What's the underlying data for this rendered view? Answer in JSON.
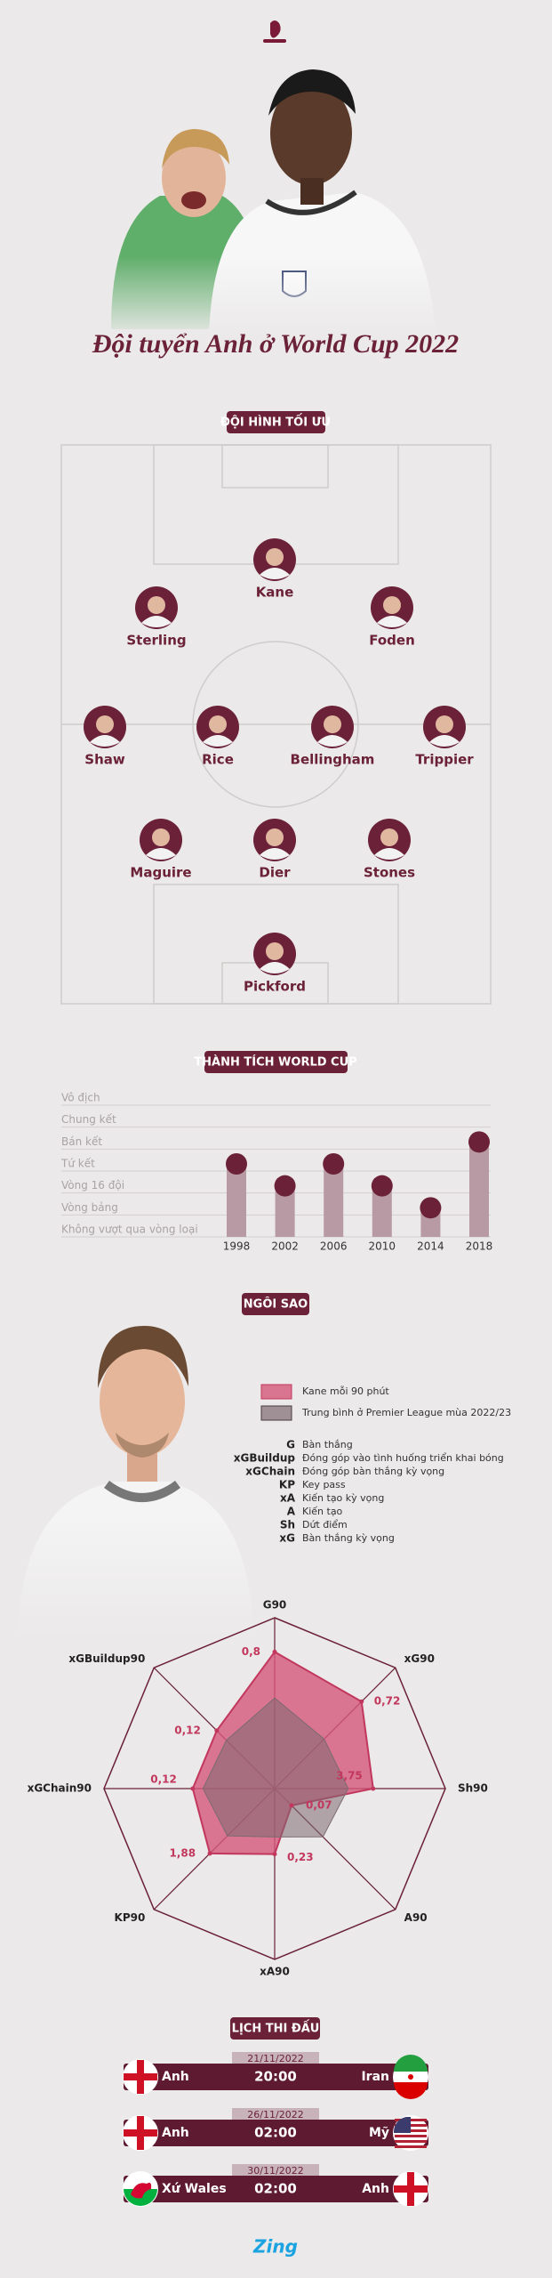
{
  "header": {
    "title": "Đội tuyển Anh ở World Cup 2022"
  },
  "lineup": {
    "title": "ĐỘI HÌNH TỐI ƯU",
    "players": [
      "Kane",
      "Sterling",
      "Foden",
      "Shaw",
      "Rice",
      "Bellingham",
      "Trippier",
      "Maguire",
      "Dier",
      "Stones",
      "Pickford"
    ]
  },
  "chart_data": [
    {
      "type": "bar",
      "title": "THÀNH TÍCH WORLD CUP",
      "categories": [
        "1998",
        "2002",
        "2006",
        "2010",
        "2014",
        "2018"
      ],
      "values": [
        3,
        2,
        3,
        2,
        1,
        4
      ],
      "color": "#b89aa4",
      "ylim": [
        0,
        6
      ],
      "yticks": [
        {
          "value": 0,
          "label": "Không vượt qua vòng loại"
        },
        {
          "value": 1,
          "label": "Vòng bảng"
        },
        {
          "value": 2,
          "label": "Vòng 16 đội"
        },
        {
          "value": 3,
          "label": "Tứ kết"
        },
        {
          "value": 4,
          "label": "Bán kết"
        },
        {
          "value": 5,
          "label": "Chung kết"
        },
        {
          "value": 6,
          "label": "Vô địch"
        }
      ],
      "grid": true
    },
    {
      "type": "radar",
      "title": "NGÔI SAO",
      "axes": [
        {
          "name": "G90",
          "lim": [
            0,
            1
          ]
        },
        {
          "name": "xG90",
          "lim": [
            0,
            1
          ]
        },
        {
          "name": "Sh90",
          "lim": [
            0,
            6.5
          ]
        },
        {
          "name": "A90",
          "lim": [
            0,
            0.5
          ]
        },
        {
          "name": "xA90",
          "lim": [
            0,
            0.6
          ]
        },
        {
          "name": "KP90",
          "lim": [
            0,
            3.5
          ]
        },
        {
          "name": "xGChain90",
          "lim": [
            0,
            0.25
          ]
        },
        {
          "name": "xGBuildup90",
          "lim": [
            0,
            0.25
          ]
        }
      ],
      "series": [
        {
          "name": "Kane mỗi 90 phút",
          "color": "#d4567a",
          "values": [
            0.8,
            0.72,
            3.75,
            0.07,
            0.23,
            1.88,
            0.12,
            0.12
          ],
          "value_labels": [
            "0,8",
            "0,72",
            "3,75",
            "0,07",
            "0,23",
            "1,88",
            "0,12",
            "0,12"
          ]
        },
        {
          "name": "Trung bình ở Premier League mùa 2022/23",
          "color": "#7d6a71",
          "values": [
            0.53,
            0.41,
            2.8,
            0.2,
            0.17,
            1.37,
            0.105,
            0.1
          ]
        }
      ],
      "legend": "top-right"
    }
  ],
  "glossary": [
    {
      "abbr": "G",
      "text": "Bàn thắng"
    },
    {
      "abbr": "xGBuildup",
      "text": "Đóng góp vào tình huống triển khai bóng"
    },
    {
      "abbr": "xGChain",
      "text": "Đóng góp bàn thắng kỳ vọng"
    },
    {
      "abbr": "KP",
      "text": "Key pass"
    },
    {
      "abbr": "xA",
      "text": "Kiến tạo kỳ vọng"
    },
    {
      "abbr": "A",
      "text": "Kiến tạo"
    },
    {
      "abbr": "Sh",
      "text": "Dứt điểm"
    },
    {
      "abbr": "xG",
      "text": "Bàn thắng kỳ vọng"
    }
  ],
  "schedule": {
    "title": "LỊCH THI ĐẤU",
    "matches": [
      {
        "date": "21/11/2022",
        "home": "Anh",
        "time": "20:00",
        "away": "Iran"
      },
      {
        "date": "26/11/2022",
        "home": "Anh",
        "time": "02:00",
        "away": "Mỹ"
      },
      {
        "date": "30/11/2022",
        "home": "Xứ Wales",
        "time": "02:00",
        "away": "Anh"
      }
    ]
  },
  "footer": {
    "logo": "Zing"
  }
}
